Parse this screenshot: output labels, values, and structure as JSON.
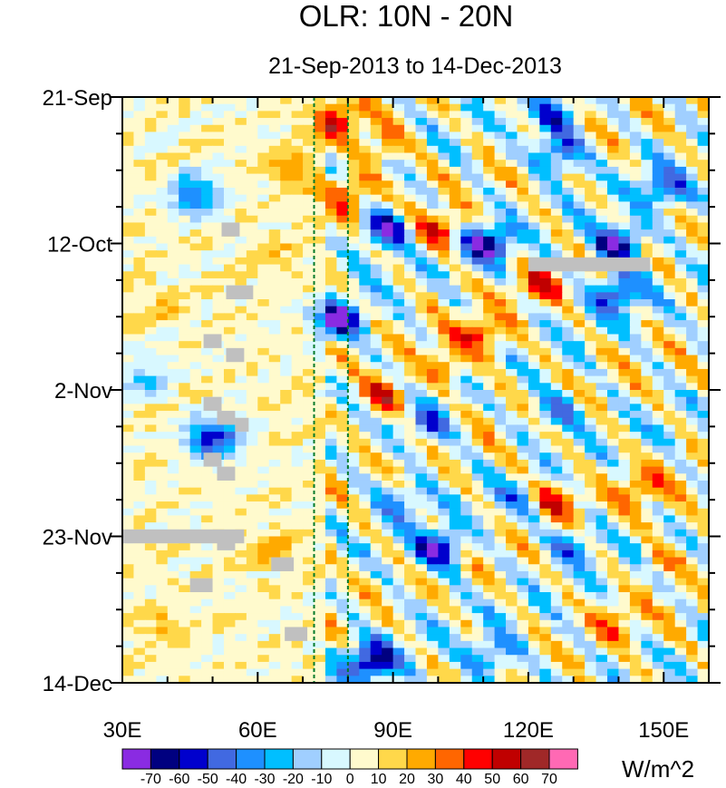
{
  "chart_data": {
    "type": "heatmap",
    "title": "OLR: 10N - 20N",
    "subtitle": "21-Sep-2013 to 14-Dec-2013",
    "units": "W/m^2",
    "x_axis": {
      "range": [
        30,
        160
      ],
      "ticks": [
        {
          "value": 30,
          "label": "30E"
        },
        {
          "value": 60,
          "label": "60E"
        },
        {
          "value": 90,
          "label": "90E"
        },
        {
          "value": 120,
          "label": "120E"
        },
        {
          "value": 150,
          "label": "150E"
        }
      ]
    },
    "y_axis": {
      "range_days": [
        0,
        84
      ],
      "direction": "time increases downward",
      "ticks": [
        {
          "day": 0,
          "label": "21-Sep"
        },
        {
          "day": 21,
          "label": "12-Oct"
        },
        {
          "day": 42,
          "label": "2-Nov"
        },
        {
          "day": 63,
          "label": "23-Nov"
        },
        {
          "day": 84,
          "label": "14-Dec"
        }
      ]
    },
    "reference_lines_lon": [
      72.5,
      80
    ],
    "colorbar": {
      "labels": [
        "-70",
        "-60",
        "-50",
        "-40",
        "-30",
        "-20",
        "-10",
        "0",
        "10",
        "20",
        "30",
        "40",
        "50",
        "60",
        "70"
      ],
      "colors": [
        "#8a2be2",
        "#000080",
        "#0000cd",
        "#4169e1",
        "#1e90ff",
        "#00bfff",
        "#a0cfff",
        "#d8f8ff",
        "#fffacd",
        "#ffd84a",
        "#ffaa00",
        "#ff6600",
        "#ff0000",
        "#c00000",
        "#a02828",
        "#ff69b4"
      ]
    },
    "anomaly_features": [
      {
        "lon": 78,
        "day": 3,
        "value": 45
      },
      {
        "lon": 80,
        "day": 14,
        "value": 45
      },
      {
        "lon": 88,
        "day": 7,
        "value": 35
      },
      {
        "lon": 46,
        "day": 14,
        "value": -45
      },
      {
        "lon": 88,
        "day": 19,
        "value": -65
      },
      {
        "lon": 100,
        "day": 19,
        "value": 45
      },
      {
        "lon": 111,
        "day": 21,
        "value": -65
      },
      {
        "lon": 140,
        "day": 21,
        "value": -70
      },
      {
        "lon": 140,
        "day": 28,
        "value": -55
      },
      {
        "lon": 150,
        "day": 13,
        "value": -45
      },
      {
        "lon": 127,
        "day": 8,
        "value": -50
      },
      {
        "lon": 125,
        "day": 3,
        "value": -35
      },
      {
        "lon": 78,
        "day": 32,
        "value": -65
      },
      {
        "lon": 122,
        "day": 27,
        "value": 35
      },
      {
        "lon": 110,
        "day": 34,
        "value": 40
      },
      {
        "lon": 88,
        "day": 43,
        "value": 45
      },
      {
        "lon": 102,
        "day": 38,
        "value": 35
      },
      {
        "lon": 50,
        "day": 49,
        "value": -65
      },
      {
        "lon": 98,
        "day": 47,
        "value": -40
      },
      {
        "lon": 126,
        "day": 45,
        "value": -40
      },
      {
        "lon": 126,
        "day": 58,
        "value": 45
      },
      {
        "lon": 145,
        "day": 56,
        "value": 35
      },
      {
        "lon": 100,
        "day": 65,
        "value": -65
      },
      {
        "lon": 130,
        "day": 64,
        "value": -35
      },
      {
        "lon": 85,
        "day": 81,
        "value": -65
      },
      {
        "lon": 112,
        "day": 80,
        "value": -40
      },
      {
        "lon": 140,
        "day": 75,
        "value": 25
      },
      {
        "lon": 63,
        "day": 65,
        "value": 20
      },
      {
        "lon": 40,
        "day": 76,
        "value": 15
      },
      {
        "lon": 40,
        "day": 30,
        "value": 10
      },
      {
        "lon": 68,
        "day": 10,
        "value": 20
      },
      {
        "lon": 64,
        "day": 22,
        "value": 10
      },
      {
        "lon": 118,
        "day": 58,
        "value": -25
      },
      {
        "lon": 150,
        "day": 67,
        "value": 20
      },
      {
        "lon": 92,
        "day": 58,
        "value": -30
      },
      {
        "lon": 35,
        "day": 40,
        "value": -25
      }
    ],
    "missing_data_cells": [
      {
        "lon0": 52,
        "lon1": 56,
        "day0": 18,
        "day1": 20
      },
      {
        "lon0": 53,
        "lon1": 59,
        "day0": 27,
        "day1": 29
      },
      {
        "lon0": 48,
        "lon1": 52,
        "day0": 34,
        "day1": 36
      },
      {
        "lon0": 53,
        "lon1": 57,
        "day0": 36,
        "day1": 38
      },
      {
        "lon0": 48,
        "lon1": 52,
        "day0": 43,
        "day1": 45
      },
      {
        "lon0": 51,
        "lon1": 55,
        "day0": 45,
        "day1": 47
      },
      {
        "lon0": 55,
        "lon1": 58,
        "day0": 46,
        "day1": 48
      },
      {
        "lon0": 48,
        "lon1": 52,
        "day0": 51,
        "day1": 53
      },
      {
        "lon0": 51,
        "lon1": 55,
        "day0": 53,
        "day1": 55
      },
      {
        "lon0": 30,
        "lon1": 57,
        "day0": 62,
        "day1": 64
      },
      {
        "lon0": 51,
        "lon1": 55,
        "day0": 63,
        "day1": 65
      },
      {
        "lon0": 63,
        "lon1": 68,
        "day0": 66,
        "day1": 68
      },
      {
        "lon0": 45,
        "lon1": 50,
        "day0": 69,
        "day1": 71
      },
      {
        "lon0": 66,
        "lon1": 71,
        "day0": 76,
        "day1": 78
      },
      {
        "lon0": 120,
        "lon1": 147,
        "day0": 23,
        "day1": 25
      }
    ]
  }
}
